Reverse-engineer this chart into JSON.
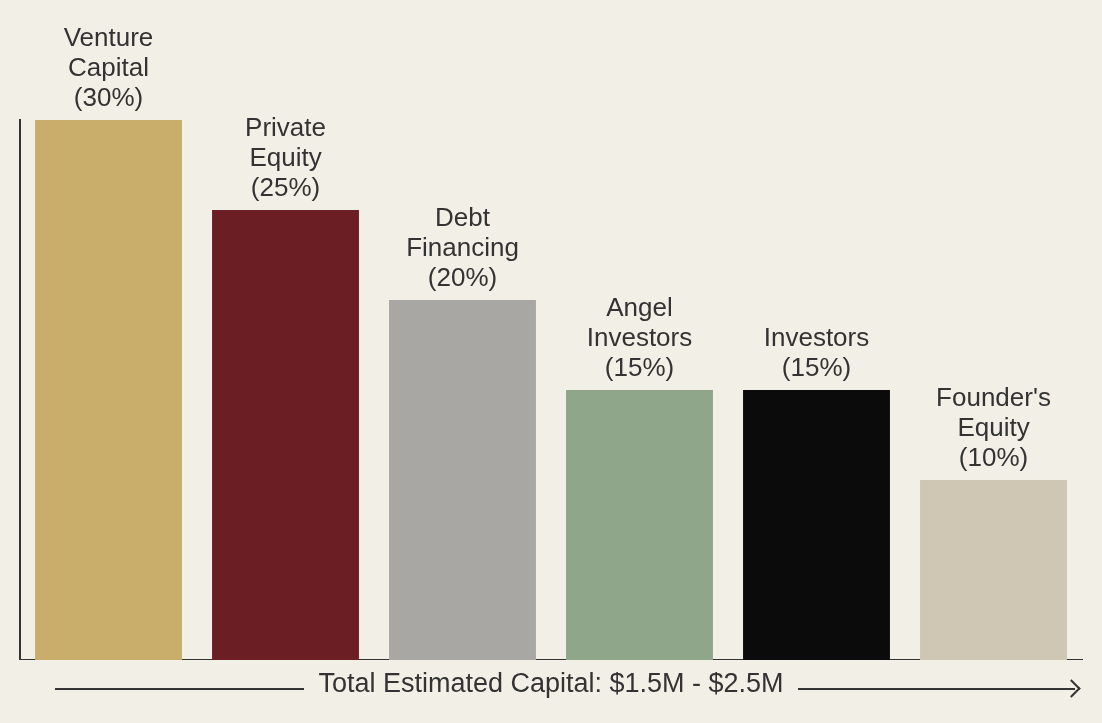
{
  "chart_data": {
    "type": "bar",
    "xlabel": "Total Estimated Capital: $1.5M - $2.5M",
    "categories": [
      "Venture Capital",
      "Private Equity",
      "Debt Financing",
      "Angel Investors",
      "Investors",
      "Founder's Equity"
    ],
    "values": [
      30,
      25,
      20,
      15,
      15,
      10
    ],
    "value_labels": [
      "(30%)",
      "(25%)",
      "(20%)",
      "(15%)",
      "(15%)",
      "(10%)"
    ],
    "colors": [
      "#c9ae6b",
      "#6b1e24",
      "#a8a7a3",
      "#8fa68a",
      "#0b0b0b",
      "#cfc7b3"
    ],
    "grid": false,
    "legend": false
  }
}
